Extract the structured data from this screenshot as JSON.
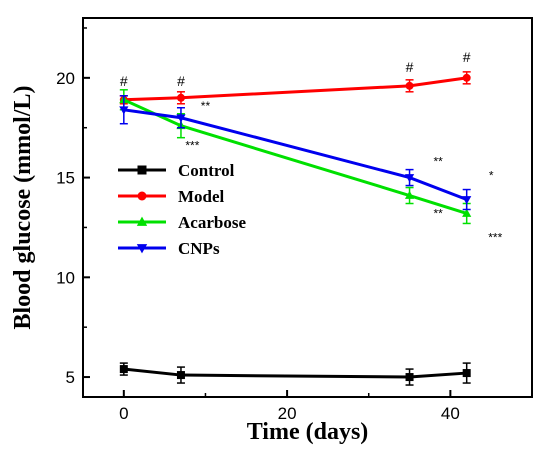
{
  "chart_data": {
    "type": "line",
    "xlabel": "Time (days)",
    "ylabel": "Blood glucose (mmol/L)",
    "xlim": [
      -5,
      50
    ],
    "ylim": [
      4,
      23
    ],
    "xticks": [
      0,
      20,
      40
    ],
    "yticks": [
      5,
      10,
      15,
      20
    ],
    "x": [
      0,
      7,
      35,
      42
    ],
    "legend_position": "left-center",
    "grid": false,
    "series": [
      {
        "name": "Control",
        "color": "#000000",
        "marker": "square",
        "values": [
          5.4,
          5.1,
          5.0,
          5.2
        ],
        "errors": [
          0.3,
          0.4,
          0.4,
          0.5
        ]
      },
      {
        "name": "Model",
        "color": "#ff0000",
        "marker": "circle",
        "values": [
          18.9,
          19.0,
          19.6,
          20.0
        ],
        "errors": [
          0.2,
          0.3,
          0.3,
          0.3
        ]
      },
      {
        "name": "Acarbose",
        "color": "#00e000",
        "marker": "triangle-up",
        "values": [
          18.9,
          17.6,
          14.1,
          13.2
        ],
        "errors": [
          0.5,
          0.6,
          0.4,
          0.5
        ]
      },
      {
        "name": "CNPs",
        "color": "#0000ee",
        "marker": "triangle-down",
        "values": [
          18.4,
          18.0,
          15.0,
          13.9
        ],
        "errors": [
          0.7,
          0.5,
          0.4,
          0.5
        ]
      }
    ],
    "annotations": [
      {
        "text": "#",
        "x": 0,
        "y": 19.6
      },
      {
        "text": "#",
        "x": 7,
        "y": 19.6
      },
      {
        "text": "#",
        "x": 35,
        "y": 20.3
      },
      {
        "text": "#",
        "x": 42,
        "y": 20.8
      },
      {
        "text": "**",
        "x": 10,
        "y": 18.4
      },
      {
        "text": "***",
        "x": 8.4,
        "y": 16.4
      },
      {
        "text": "**",
        "x": 38.5,
        "y": 15.6
      },
      {
        "text": "**",
        "x": 38.5,
        "y": 13.0
      },
      {
        "text": "*",
        "x": 45,
        "y": 14.9
      },
      {
        "text": "***",
        "x": 45.5,
        "y": 11.8
      }
    ]
  }
}
